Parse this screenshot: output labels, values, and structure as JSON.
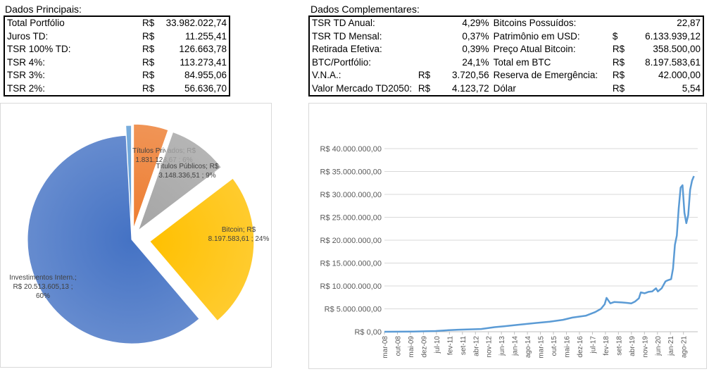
{
  "principal": {
    "title": "Dados Principais:",
    "rows": [
      {
        "label": "Total Portfólio",
        "cur": "R$",
        "value": "33.982.022,74"
      },
      {
        "label": "Juros TD:",
        "cur": "R$",
        "value": "11.255,41"
      },
      {
        "label": "TSR 100% TD:",
        "cur": "R$",
        "value": "126.663,78"
      },
      {
        "label": "TSR 4%:",
        "cur": "R$",
        "value": "113.273,41"
      },
      {
        "label": "TSR 3%:",
        "cur": "R$",
        "value": "84.955,06"
      },
      {
        "label": "TSR 2%:",
        "cur": "R$",
        "value": "56.636,70"
      }
    ]
  },
  "complementar": {
    "title": "Dados Complementares:",
    "rows": [
      {
        "label": "TSR TD Anual:",
        "cur": "",
        "value": "4,29%",
        "label2": "Bitcoins Possuídos:",
        "cur2": "",
        "value2": "22,87"
      },
      {
        "label": "TSR TD Mensal:",
        "cur": "",
        "value": "0,37%",
        "label2": "Patrimônio em USD:",
        "cur2": "$",
        "value2": "6.133.939,12"
      },
      {
        "label": "Retirada Efetiva:",
        "cur": "",
        "value": "0,39%",
        "label2": "Preço Atual Bitcoin:",
        "cur2": "R$",
        "value2": "358.500,00"
      },
      {
        "label": "BTC/Portfólio:",
        "cur": "",
        "value": "24,1%",
        "label2": "Total em BTC",
        "cur2": "R$",
        "value2": "8.197.583,61"
      },
      {
        "label": "V.N.A.:",
        "cur": "R$",
        "value": "3.720,56",
        "label2": "Reserva de Emergência:",
        "cur2": "R$",
        "value2": "42.000,00"
      },
      {
        "label": "Valor Mercado TD2050:",
        "cur": "R$",
        "value": "4.123,72",
        "label2": "Dólar",
        "cur2": "R$",
        "value2": "5,54"
      }
    ]
  },
  "chart_data": [
    {
      "type": "pie",
      "slices": [
        {
          "label_lines": [
            "Títulos Privados;  R$",
            "1.831.128,67 ; 6%"
          ],
          "value": 1831128.67,
          "percent": 6,
          "color": "#ed7d31"
        },
        {
          "label_lines": [
            "Títulos Públicos;  R$",
            "3.148.336,51 ; 9%"
          ],
          "value": 3148336.51,
          "percent": 9,
          "color": "#a5a5a5"
        },
        {
          "label_lines": [
            "Bitcoin;  R$",
            "8.197.583,61 ; 24%"
          ],
          "value": 8197583.61,
          "percent": 24,
          "color": "#ffc000"
        },
        {
          "label_lines": [
            "Investimentos Intern.;",
            "R$ 20.513.605,13 ;",
            "60%"
          ],
          "value": 20513605.13,
          "percent": 60,
          "color": "#4472c4"
        },
        {
          "label_lines": [],
          "value": 291368.82,
          "percent": 1,
          "color": "#5b9bd5"
        }
      ]
    },
    {
      "type": "line",
      "ylim": [
        0,
        40000000
      ],
      "yticks": [
        "R$ 0,00",
        "R$ 5.000.000,00",
        "R$ 10.000.000,00",
        "R$ 15.000.000,00",
        "R$ 20.000.000,00",
        "R$ 25.000.000,00",
        "R$ 30.000.000,00",
        "R$ 35.000.000,00",
        "R$ 40.000.000,00"
      ],
      "xlim": [
        "2008-03",
        "2021-12"
      ],
      "xticks": [
        "mar-08",
        "out-08",
        "mai-09",
        "dez-09",
        "jul-10",
        "fev-11",
        "set-11",
        "abr-12",
        "nov-12",
        "jun-13",
        "jan-14",
        "ago-14",
        "mar-15",
        "out-15",
        "mai-16",
        "dez-16",
        "jul-17",
        "fev-18",
        "set-18",
        "abr-19",
        "nov-19",
        "jun-20",
        "jan-21",
        "ago-21"
      ],
      "series": [
        {
          "color": "#5b9bd5",
          "points": [
            [
              "2008-03",
              0
            ],
            [
              "2009-06",
              50000
            ],
            [
              "2010-06",
              150000
            ],
            [
              "2011-01",
              350000
            ],
            [
              "2011-06",
              450000
            ],
            [
              "2012-06",
              600000
            ],
            [
              "2013-01",
              1000000
            ],
            [
              "2013-06",
              1200000
            ],
            [
              "2014-01",
              1500000
            ],
            [
              "2014-06",
              1700000
            ],
            [
              "2015-01",
              2000000
            ],
            [
              "2015-06",
              2200000
            ],
            [
              "2016-01",
              2600000
            ],
            [
              "2016-06",
              3100000
            ],
            [
              "2017-01",
              3500000
            ],
            [
              "2017-06",
              4300000
            ],
            [
              "2017-09",
              5000000
            ],
            [
              "2017-11",
              6000000
            ],
            [
              "2017-12",
              7400000
            ],
            [
              "2018-02",
              6200000
            ],
            [
              "2018-04",
              6500000
            ],
            [
              "2018-08",
              6400000
            ],
            [
              "2018-11",
              6300000
            ],
            [
              "2019-01",
              6200000
            ],
            [
              "2019-03",
              6600000
            ],
            [
              "2019-05",
              7300000
            ],
            [
              "2019-06",
              8600000
            ],
            [
              "2019-08",
              8400000
            ],
            [
              "2019-10",
              8700000
            ],
            [
              "2019-12",
              8800000
            ],
            [
              "2020-02",
              9500000
            ],
            [
              "2020-03",
              8800000
            ],
            [
              "2020-05",
              9500000
            ],
            [
              "2020-07",
              11000000
            ],
            [
              "2020-08",
              11200000
            ],
            [
              "2020-10",
              11500000
            ],
            [
              "2020-11",
              13800000
            ],
            [
              "2020-12",
              19000000
            ],
            [
              "2021-01",
              21000000
            ],
            [
              "2021-02",
              27000000
            ],
            [
              "2021-03",
              31500000
            ],
            [
              "2021-04",
              32000000
            ],
            [
              "2021-05",
              26000000
            ],
            [
              "2021-06",
              23700000
            ],
            [
              "2021-07",
              25500000
            ],
            [
              "2021-08",
              31000000
            ],
            [
              "2021-09",
              33000000
            ],
            [
              "2021-10",
              34000000
            ]
          ]
        }
      ]
    }
  ]
}
